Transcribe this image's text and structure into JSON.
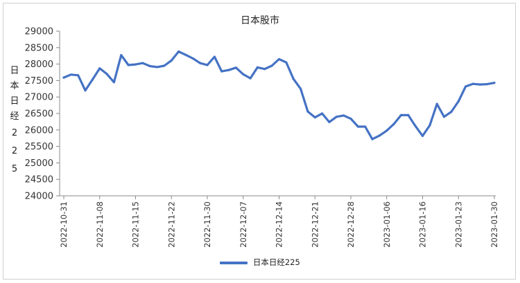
{
  "chart_data": {
    "type": "line",
    "title": "日本股市",
    "ylabel": "日本日经225",
    "ylim": [
      24000,
      29000
    ],
    "yticks": [
      24000,
      24500,
      25000,
      25500,
      26000,
      26500,
      27000,
      27500,
      28000,
      28500,
      29000
    ],
    "xtick_labels": [
      "2022-10-31",
      "2022-11-08",
      "2022-11-15",
      "2022-11-22",
      "2022-11-30",
      "2022-12-07",
      "2022-12-14",
      "2022-12-21",
      "2022-12-28",
      "2023-01-06",
      "2023-01-16",
      "2023-01-23",
      "2023-01-30"
    ],
    "legend_position": "bottom",
    "grid": false,
    "series": [
      {
        "name": "日本日经225",
        "color": "#4472c4",
        "values": [
          27590,
          27680,
          27660,
          27200,
          27530,
          27870,
          27700,
          27450,
          28270,
          27970,
          27990,
          28030,
          27940,
          27910,
          27950,
          28110,
          28380,
          28280,
          28170,
          28030,
          27970,
          28220,
          27780,
          27820,
          27890,
          27690,
          27570,
          27900,
          27850,
          27950,
          28150,
          28050,
          27550,
          27250,
          26560,
          26380,
          26500,
          26240,
          26400,
          26440,
          26340,
          26100,
          26100,
          25720,
          25830,
          25980,
          26180,
          26450,
          26450,
          26120,
          25820,
          26140,
          26790,
          26400,
          26550,
          26870,
          27320,
          27400,
          27380,
          27390,
          27430
        ]
      }
    ]
  }
}
